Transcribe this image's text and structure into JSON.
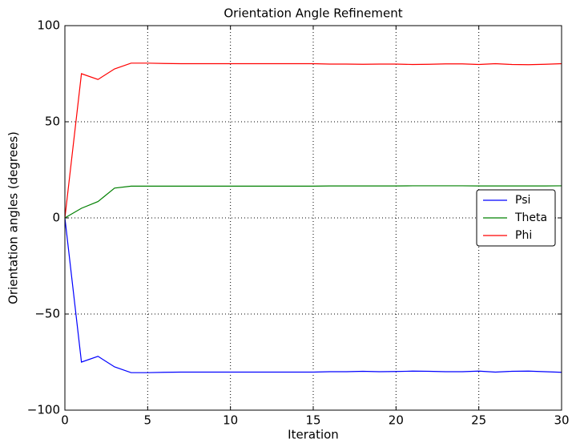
{
  "chart_data": {
    "type": "line",
    "title": "Orientation Angle Refinement",
    "x_label": "Iteration",
    "y_label": "Orientation angles (degrees)",
    "x": [
      0,
      1,
      2,
      3,
      4,
      5,
      6,
      7,
      8,
      9,
      10,
      11,
      12,
      13,
      14,
      15,
      16,
      17,
      18,
      19,
      20,
      21,
      22,
      23,
      24,
      25,
      26,
      27,
      28,
      29,
      30
    ],
    "series": [
      {
        "name": "Psi",
        "color": "#0000ff",
        "values": [
          0,
          -75,
          -72,
          -77.5,
          -80.5,
          -80.5,
          -80.3,
          -80.2,
          -80.2,
          -80.2,
          -80.2,
          -80.2,
          -80.2,
          -80.2,
          -80.2,
          -80.2,
          -80,
          -80,
          -79.8,
          -80,
          -79.9,
          -79.7,
          -79.8,
          -80,
          -80,
          -79.7,
          -80.2,
          -79.8,
          -79.7,
          -80,
          -80.3
        ]
      },
      {
        "name": "Theta",
        "color": "#008000",
        "values": [
          0,
          5,
          8.5,
          15.5,
          16.5,
          16.5,
          16.5,
          16.5,
          16.5,
          16.5,
          16.5,
          16.5,
          16.5,
          16.5,
          16.5,
          16.5,
          16.6,
          16.6,
          16.6,
          16.6,
          16.6,
          16.7,
          16.7,
          16.7,
          16.7,
          16.6,
          16.6,
          16.6,
          16.6,
          16.6,
          16.7
        ]
      },
      {
        "name": "Phi",
        "color": "#ff0000",
        "values": [
          0,
          75,
          72,
          77.5,
          80.5,
          80.5,
          80.3,
          80.2,
          80.2,
          80.2,
          80.2,
          80.2,
          80.2,
          80.2,
          80.2,
          80.2,
          80,
          80,
          79.9,
          80,
          80,
          79.8,
          79.9,
          80.1,
          80.1,
          79.8,
          80.2,
          79.8,
          79.7,
          79.9,
          80.2
        ]
      }
    ],
    "xlim": [
      0,
      30
    ],
    "xticks": [
      0,
      5,
      10,
      15,
      20,
      25,
      30
    ],
    "ylim": [
      -100,
      100
    ],
    "yticks": [
      {
        "value": -100,
        "label": "−100"
      },
      {
        "value": -50,
        "label": "−50"
      },
      0,
      50,
      100
    ],
    "grid": true,
    "legend": "center right"
  }
}
